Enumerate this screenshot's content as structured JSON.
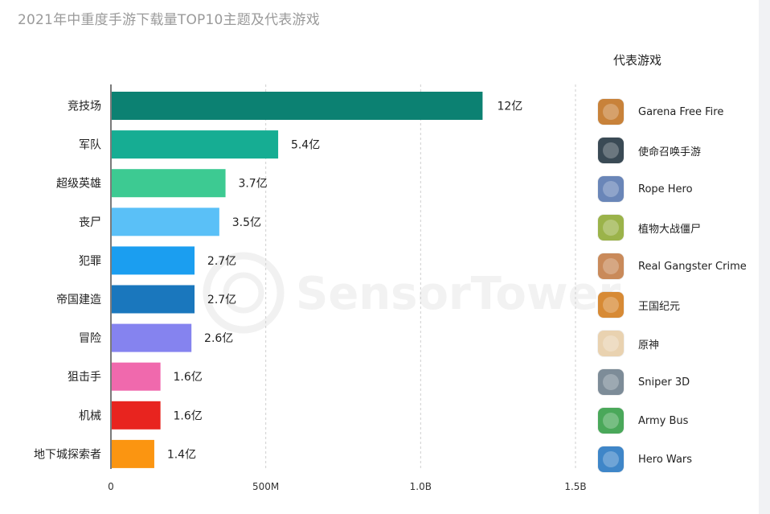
{
  "title": "2021年中重度手游下载量TOP10主题及代表游戏",
  "watermark": "SensorTower",
  "chart_data": {
    "type": "bar",
    "orientation": "horizontal",
    "title": "2021年中重度手游下载量TOP10主题及代表游戏",
    "categories": [
      "竞技场",
      "军队",
      "超级英雄",
      "丧尸",
      "犯罪",
      "帝国建造",
      "冒险",
      "狙击手",
      "机械",
      "地下城探索者"
    ],
    "values": [
      1200000000,
      540000000,
      370000000,
      350000000,
      270000000,
      270000000,
      260000000,
      160000000,
      160000000,
      140000000
    ],
    "value_labels": [
      "12亿",
      "5.4亿",
      "3.7亿",
      "3.5亿",
      "2.7亿",
      "2.7亿",
      "2.6亿",
      "1.6亿",
      "1.6亿",
      "1.4亿"
    ],
    "bar_colors": [
      "#0c8172",
      "#16ad93",
      "#3dca92",
      "#5ac0f7",
      "#1b9ef0",
      "#1a77bd",
      "#8583ef",
      "#f069ad",
      "#e8241f",
      "#fb9511"
    ],
    "x_ticks": [
      0,
      500000000,
      1000000000,
      1500000000
    ],
    "x_tick_labels": [
      "0",
      "500M",
      "1.0B",
      "1.5B"
    ],
    "xlim": [
      0,
      1500000000
    ],
    "grid": true,
    "legend": "none"
  },
  "games": {
    "heading": "代表游戏",
    "items": [
      {
        "name": "Garena Free Fire",
        "icon": "free-fire-icon",
        "color": "#c8823a"
      },
      {
        "name": "使命召唤手游",
        "icon": "call-of-duty-icon",
        "color": "#3a4a55"
      },
      {
        "name": "Rope Hero",
        "icon": "rope-hero-icon",
        "color": "#6a86b8"
      },
      {
        "name": "植物大战僵尸",
        "icon": "plants-vs-zombies-icon",
        "color": "#9bb34a"
      },
      {
        "name": "Real Gangster Crime",
        "icon": "real-gangster-crime-icon",
        "color": "#c98a5a"
      },
      {
        "name": "王国纪元",
        "icon": "lords-mobile-icon",
        "color": "#d78a35"
      },
      {
        "name": "原神",
        "icon": "genshin-impact-icon",
        "color": "#e9d2b0"
      },
      {
        "name": "Sniper 3D",
        "icon": "sniper-3d-icon",
        "color": "#7d8c98"
      },
      {
        "name": "Army Bus",
        "icon": "army-bus-icon",
        "color": "#4aa85a"
      },
      {
        "name": "Hero Wars",
        "icon": "hero-wars-icon",
        "color": "#3f86c8"
      }
    ]
  }
}
